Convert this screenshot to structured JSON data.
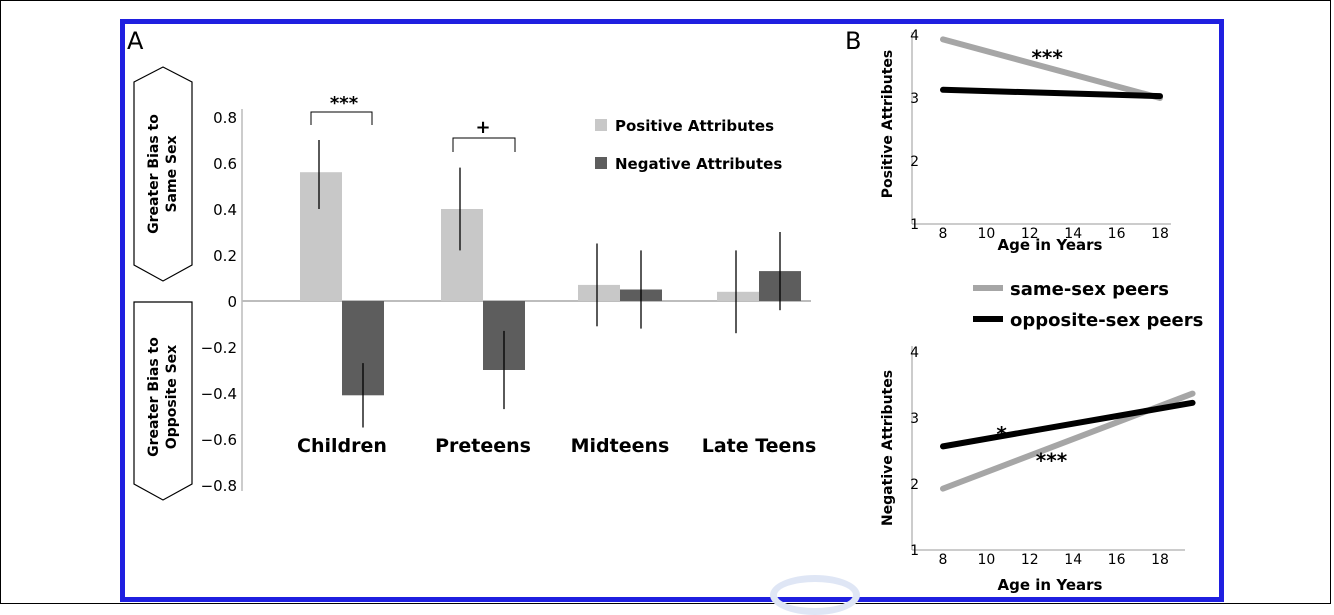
{
  "colors": {
    "border": "#1f1fe0",
    "positive": "#c8c8c8",
    "negative": "#5d5d5d",
    "same_sex": "#a6a6a6",
    "opposite_sex": "#000000"
  },
  "chart_data": [
    {
      "panel_label": "A",
      "type": "bar",
      "categories": [
        "Children",
        "Preteens",
        "Midteens",
        "Late Teens"
      ],
      "series": [
        {
          "name": "Positive Attributes",
          "values": [
            0.56,
            0.4,
            0.07,
            0.04
          ],
          "error_low": [
            0.4,
            0.22,
            -0.11,
            -0.14
          ],
          "error_high": [
            0.7,
            0.58,
            0.25,
            0.22
          ]
        },
        {
          "name": "Negative Attributes",
          "values": [
            -0.41,
            -0.3,
            0.05,
            0.13
          ],
          "error_low": [
            -0.55,
            -0.47,
            -0.12,
            -0.04
          ],
          "error_high": [
            -0.27,
            -0.13,
            0.22,
            0.3
          ]
        }
      ],
      "yticks": [
        "0.8",
        "0.6",
        "0.4",
        "0.2",
        "0",
        "−0.2",
        "−0.4",
        "−0.6",
        "−0.8"
      ],
      "ylim": [
        -0.8,
        0.8
      ],
      "ylabel_top": [
        "Greater Bias to",
        "Same Sex"
      ],
      "ylabel_bottom": [
        "Greater Bias to",
        "Opposite Sex"
      ],
      "significance": [
        {
          "category": "Children",
          "label": "***"
        },
        {
          "category": "Preteens",
          "label": "+"
        }
      ],
      "legend_placement": "top-right"
    },
    {
      "panel_label": "B",
      "type": "line",
      "title": "",
      "ylabel": "Positive Attributes",
      "xlabel": "Age in Years",
      "xticks": [
        "8",
        "10",
        "12",
        "14",
        "16",
        "18"
      ],
      "yticks": [
        "4",
        "3",
        "2",
        "1"
      ],
      "xlim": [
        7.5,
        19
      ],
      "ylim": [
        1,
        4
      ],
      "series": [
        {
          "name": "same-sex peers",
          "x": [
            8,
            18
          ],
          "y": [
            3.93,
            3.0
          ]
        },
        {
          "name": "opposite-sex peers",
          "x": [
            8,
            18
          ],
          "y": [
            3.13,
            3.03
          ]
        }
      ],
      "annotations": [
        {
          "label": "***",
          "x": 12.8,
          "y": 3.72
        }
      ]
    },
    {
      "type": "line",
      "ylabel": "Negative Attributes",
      "xlabel": "Age in Years",
      "xticks": [
        "8",
        "10",
        "12",
        "14",
        "16",
        "18"
      ],
      "yticks": [
        "4",
        "3",
        "2",
        "1"
      ],
      "xlim": [
        7.5,
        20
      ],
      "ylim": [
        1,
        4
      ],
      "series": [
        {
          "name": "same-sex peers",
          "x": [
            8,
            19.5
          ],
          "y": [
            1.93,
            3.37
          ]
        },
        {
          "name": "opposite-sex peers",
          "x": [
            8,
            19.5
          ],
          "y": [
            2.57,
            3.23
          ]
        }
      ],
      "annotations": [
        {
          "label": "*",
          "x": 10.7,
          "y": 2.83
        },
        {
          "label": "***",
          "x": 13.0,
          "y": 2.43
        }
      ]
    }
  ],
  "legend_b": [
    "same-sex peers",
    "opposite-sex peers"
  ]
}
